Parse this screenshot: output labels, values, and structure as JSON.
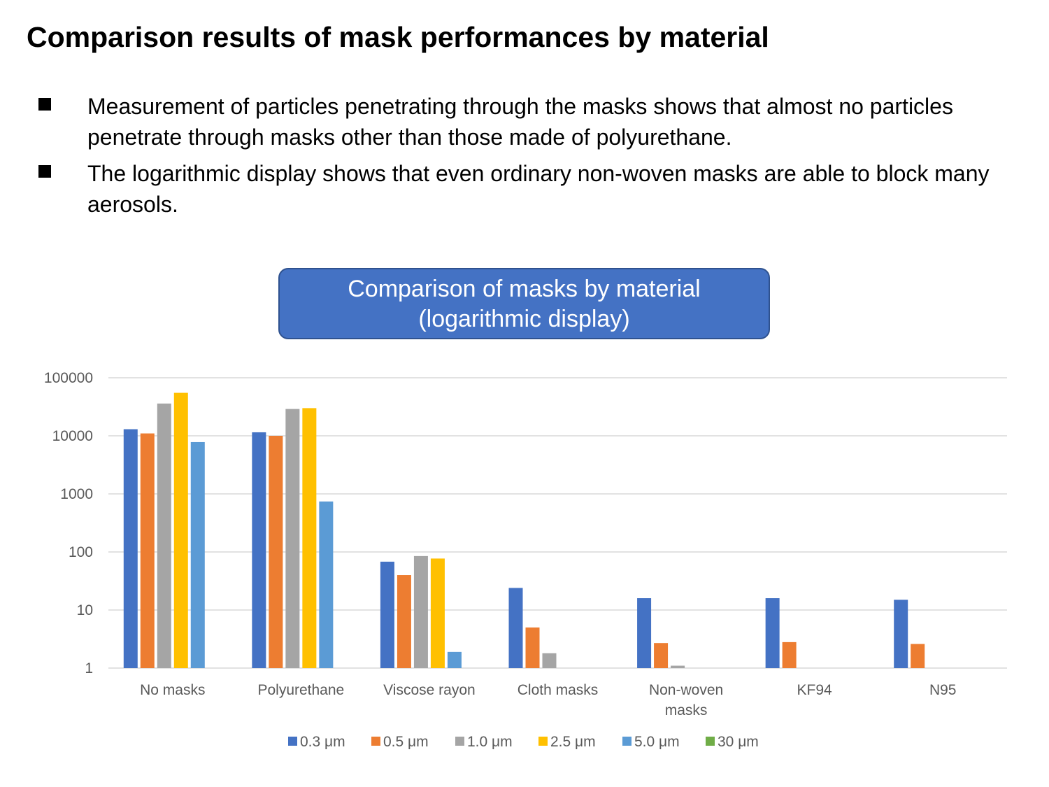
{
  "page": {
    "title": "Comparison results of mask performances by material",
    "bullets": [
      "Measurement of particles penetrating through the masks shows that almost no particles penetrate through masks other than those made of polyurethane.",
      "The logarithmic display shows that even ordinary non-woven masks are able to block many aerosols."
    ]
  },
  "chart_data": {
    "type": "bar",
    "title_lines": [
      "Comparison of masks by material",
      "(logarithmic display)"
    ],
    "title_box_color": "#4472c4",
    "yscale": "log",
    "ylim": [
      1,
      100000
    ],
    "yticks": [
      "1",
      "10",
      "100",
      "1000",
      "10000",
      "100000"
    ],
    "grid": true,
    "legend_position": "bottom",
    "categories": [
      [
        "No masks"
      ],
      [
        "Polyurethane"
      ],
      [
        "Viscose rayon"
      ],
      [
        "Cloth masks"
      ],
      [
        "Non-woven",
        "masks"
      ],
      [
        "KF94"
      ],
      [
        "N95"
      ]
    ],
    "series": [
      {
        "name": "0.3 μm",
        "color": "#4472c4",
        "values": [
          13000,
          11500,
          68,
          24,
          16,
          16,
          15
        ]
      },
      {
        "name": "0.5 μm",
        "color": "#ed7d31",
        "values": [
          11000,
          10000,
          40,
          5,
          2.7,
          2.8,
          2.6
        ]
      },
      {
        "name": "1.0 μm",
        "color": "#a5a5a5",
        "values": [
          36000,
          29000,
          85,
          1.8,
          1.1,
          1,
          1
        ]
      },
      {
        "name": "2.5 μm",
        "color": "#ffc000",
        "values": [
          55000,
          30000,
          77,
          1,
          1,
          1,
          1
        ]
      },
      {
        "name": "5.0 μm",
        "color": "#5b9bd5",
        "values": [
          7800,
          740,
          1.9,
          1,
          1,
          1,
          1
        ]
      },
      {
        "name": "30 μm",
        "color": "#70ad47",
        "values": [
          1,
          1,
          1,
          1,
          1,
          1,
          1
        ]
      }
    ]
  }
}
